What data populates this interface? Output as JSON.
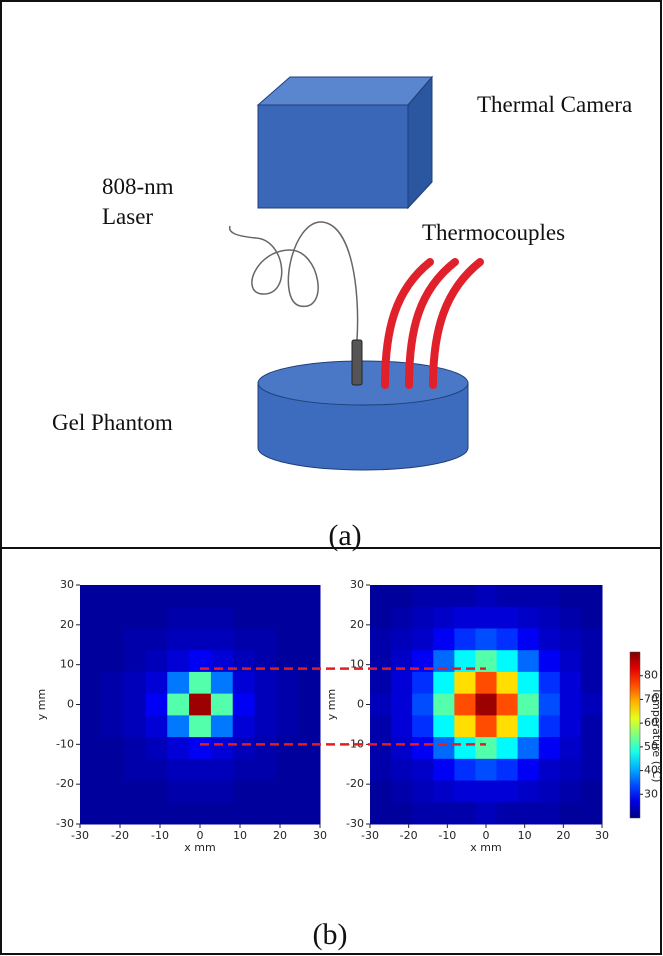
{
  "panel_a": {
    "labels": {
      "camera": "Thermal Camera",
      "laser_1": "808-nm",
      "laser_2": "Laser",
      "thermocouples": "Thermocouples",
      "phantom": "Gel Phantom"
    },
    "caption": "(a)"
  },
  "panel_b": {
    "caption": "(b)"
  },
  "chart_data": [
    {
      "type": "heatmap",
      "xlabel": "x mm",
      "ylabel": "y mm",
      "xlim": [
        -30,
        30
      ],
      "ylim": [
        -30,
        30
      ],
      "xticks": [
        -30,
        -20,
        -10,
        0,
        10,
        20,
        30
      ],
      "yticks": [
        -30,
        -20,
        -10,
        0,
        10,
        20,
        30
      ],
      "colormap": "jet",
      "clim": [
        20,
        90
      ],
      "hlines": [
        9,
        -10
      ],
      "hline_color": "#e02020",
      "values": [
        [
          22,
          22,
          22,
          22,
          22,
          22,
          22,
          22,
          22,
          22,
          22
        ],
        [
          22,
          22,
          22,
          22,
          23,
          23,
          23,
          22,
          22,
          22,
          22
        ],
        [
          22,
          22,
          23,
          23,
          24,
          24,
          24,
          23,
          23,
          22,
          22
        ],
        [
          22,
          22,
          23,
          24,
          26,
          28,
          26,
          24,
          23,
          22,
          22
        ],
        [
          22,
          23,
          24,
          26,
          37,
          52,
          37,
          26,
          24,
          23,
          22
        ],
        [
          22,
          23,
          24,
          28,
          52,
          88,
          52,
          28,
          24,
          23,
          22
        ],
        [
          22,
          23,
          24,
          26,
          37,
          52,
          37,
          26,
          24,
          23,
          22
        ],
        [
          22,
          22,
          23,
          24,
          26,
          28,
          26,
          24,
          23,
          22,
          22
        ],
        [
          22,
          22,
          23,
          23,
          24,
          24,
          24,
          23,
          23,
          22,
          22
        ],
        [
          22,
          22,
          22,
          22,
          23,
          23,
          23,
          22,
          22,
          22,
          22
        ],
        [
          22,
          22,
          22,
          22,
          22,
          22,
          22,
          22,
          22,
          22,
          22
        ]
      ]
    },
    {
      "type": "heatmap",
      "xlabel": "x mm",
      "ylabel": "y mm",
      "xlim": [
        -30,
        30
      ],
      "ylim": [
        -30,
        30
      ],
      "xticks": [
        -30,
        -20,
        -10,
        0,
        10,
        20,
        30
      ],
      "yticks": [
        -30,
        -20,
        -10,
        0,
        10,
        20,
        30
      ],
      "colormap": "jet",
      "clim": [
        20,
        90
      ],
      "colorbar": {
        "ticks": [
          30,
          40,
          50,
          60,
          70,
          80
        ],
        "label": "Temperature (°C)"
      },
      "values": [
        [
          22,
          22,
          23,
          23,
          23,
          24,
          23,
          23,
          23,
          22,
          22
        ],
        [
          22,
          23,
          24,
          25,
          26,
          26,
          26,
          25,
          24,
          23,
          22
        ],
        [
          23,
          24,
          25,
          28,
          32,
          34,
          32,
          28,
          25,
          24,
          23
        ],
        [
          23,
          25,
          28,
          36,
          46,
          52,
          46,
          36,
          28,
          25,
          23
        ],
        [
          23,
          26,
          32,
          46,
          66,
          76,
          66,
          46,
          32,
          26,
          23
        ],
        [
          24,
          26,
          34,
          52,
          76,
          88,
          76,
          52,
          34,
          26,
          24
        ],
        [
          23,
          26,
          32,
          46,
          66,
          76,
          66,
          46,
          32,
          26,
          23
        ],
        [
          23,
          25,
          28,
          36,
          46,
          52,
          46,
          36,
          28,
          25,
          23
        ],
        [
          23,
          24,
          25,
          28,
          32,
          34,
          32,
          28,
          25,
          24,
          23
        ],
        [
          22,
          23,
          24,
          25,
          26,
          26,
          26,
          25,
          24,
          23,
          22
        ],
        [
          22,
          22,
          23,
          23,
          23,
          24,
          23,
          23,
          23,
          22,
          22
        ]
      ]
    }
  ]
}
